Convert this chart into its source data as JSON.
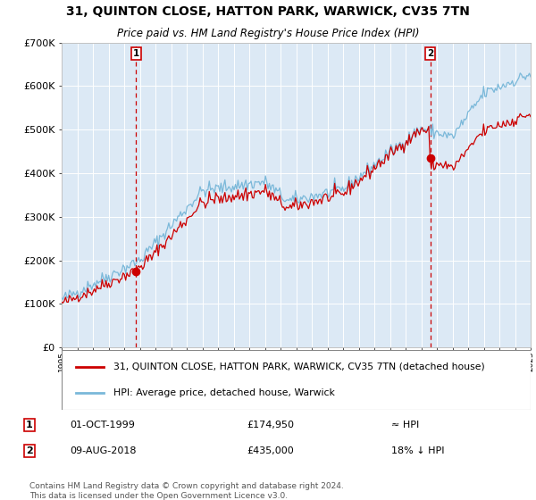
{
  "title": "31, QUINTON CLOSE, HATTON PARK, WARWICK, CV35 7TN",
  "subtitle": "Price paid vs. HM Land Registry's House Price Index (HPI)",
  "ylim": [
    0,
    700000
  ],
  "yticks": [
    0,
    100000,
    200000,
    300000,
    400000,
    500000,
    600000,
    700000
  ],
  "ytick_labels": [
    "£0",
    "£100K",
    "£200K",
    "£300K",
    "£400K",
    "£500K",
    "£600K",
    "£700K"
  ],
  "sale1_date": "01-OCT-1999",
  "sale1_price": 174950,
  "sale1_label": "£174,950",
  "sale1_note": "≈ HPI",
  "sale2_date": "09-AUG-2018",
  "sale2_price": 435000,
  "sale2_label": "£435,000",
  "sale2_note": "18% ↓ HPI",
  "legend_line1": "31, QUINTON CLOSE, HATTON PARK, WARWICK, CV35 7TN (detached house)",
  "legend_line2": "HPI: Average price, detached house, Warwick",
  "footnote": "Contains HM Land Registry data © Crown copyright and database right 2024.\nThis data is licensed under the Open Government Licence v3.0.",
  "hpi_color": "#7ab8d9",
  "price_color": "#cc0000",
  "marker_color": "#cc0000",
  "dashed_color": "#cc0000",
  "grid_color": "#ffffff",
  "plot_bg": "#dce9f5",
  "sale1_year": 1999.75,
  "sale2_year": 2018.583
}
